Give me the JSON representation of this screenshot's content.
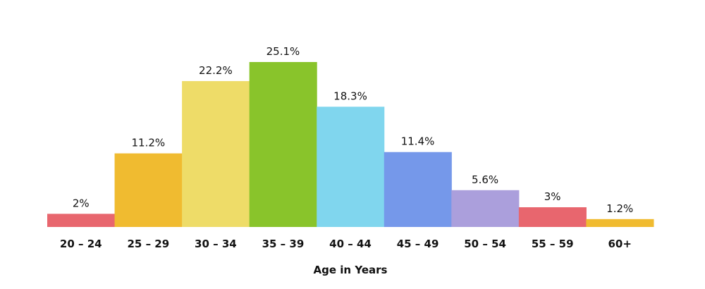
{
  "chart_data": {
    "type": "bar",
    "title": "",
    "xlabel": "Age in Years",
    "ylabel": "",
    "ylim": [
      0,
      25.1
    ],
    "grid": false,
    "legend": "none",
    "categories": [
      "20 – 24",
      "25 – 29",
      "30 – 34",
      "35 – 39",
      "40 – 44",
      "45 – 49",
      "50 – 54",
      "55 – 59",
      "60+"
    ],
    "values": [
      2,
      11.2,
      22.2,
      25.1,
      18.3,
      11.4,
      5.6,
      3,
      1.2
    ],
    "value_labels": [
      "2%",
      "11.2%",
      "22.2%",
      "25.1%",
      "18.3%",
      "11.4%",
      "5.6%",
      "3%",
      "1.2%"
    ],
    "colors": [
      "#e8666e",
      "#f0bb30",
      "#eedc68",
      "#89c42b",
      "#80d6ee",
      "#7598ea",
      "#ab9fdc",
      "#e8666e",
      "#f0bb30"
    ]
  }
}
